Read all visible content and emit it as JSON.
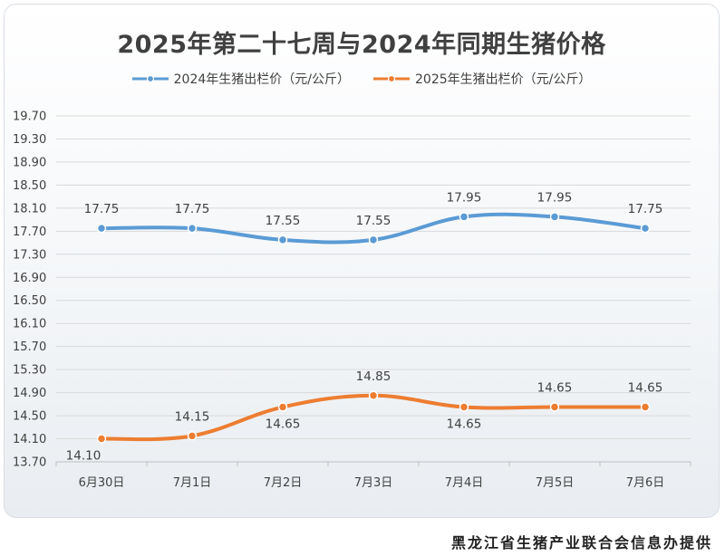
{
  "chart_data": {
    "type": "line",
    "title": "2025年第二十七周与2024年同期生猪价格",
    "categories": [
      "6月30日",
      "7月1日",
      "7月2日",
      "7月3日",
      "7月4日",
      "7月5日",
      "7月6日"
    ],
    "series": [
      {
        "name": "2024年生猪出栏价（元/公斤）",
        "values": [
          17.75,
          17.75,
          17.55,
          17.55,
          17.95,
          17.95,
          17.75
        ],
        "labels": [
          "17.75",
          "17.75",
          "17.55",
          "17.55",
          "17.95",
          "17.95",
          "17.75"
        ],
        "color": "#5b9bd5"
      },
      {
        "name": "2025年生猪出栏价（元/公斤）",
        "values": [
          14.1,
          14.15,
          14.65,
          14.85,
          14.65,
          14.65,
          14.65
        ],
        "labels": [
          "14.10",
          "14.15",
          "14.65",
          "14.85",
          "14.65",
          "14.65",
          "14.65"
        ],
        "color": "#ed7d31"
      }
    ],
    "yticks": [
      "13.70",
      "14.10",
      "14.50",
      "14.90",
      "15.30",
      "15.70",
      "16.10",
      "16.50",
      "16.90",
      "17.30",
      "17.70",
      "18.10",
      "18.50",
      "18.90",
      "19.30",
      "19.70"
    ],
    "ylim": [
      13.7,
      19.7
    ],
    "grid": true,
    "legend": "top",
    "smooth": true
  },
  "footer": {
    "credit": "黑龙江省生猪产业联合会信息办提供"
  },
  "colors": {
    "series_2024": "#5b9bd5",
    "series_2025": "#ed7d31",
    "grid": "#d9d9d9",
    "text": "#404040"
  }
}
